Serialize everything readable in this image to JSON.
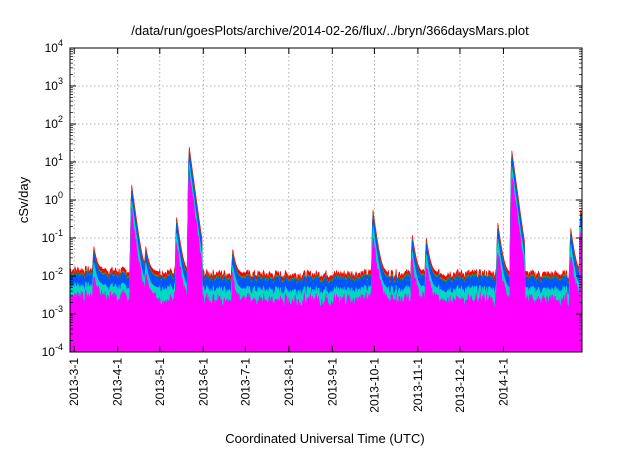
{
  "chart_data": {
    "type": "area",
    "title": "/data/run/goesPlots/archive/2014-02-26/flux/../bryn/366daysMars.plot",
    "xlabel": "Coordinated Universal Time (UTC)",
    "ylabel": "cSv/day",
    "yscale": "log",
    "grid": true,
    "ylim": [
      0.0001,
      10000
    ],
    "xlim": [
      "2013-02-26",
      "2014-02-26"
    ],
    "y_ticks": [
      {
        "value": 0.0001,
        "base": "10",
        "exp": "-4"
      },
      {
        "value": 0.001,
        "base": "10",
        "exp": "-3"
      },
      {
        "value": 0.01,
        "base": "10",
        "exp": "-2"
      },
      {
        "value": 0.1,
        "base": "10",
        "exp": "-1"
      },
      {
        "value": 1,
        "base": "10",
        "exp": "0"
      },
      {
        "value": 10,
        "base": "10",
        "exp": "1"
      },
      {
        "value": 100,
        "base": "10",
        "exp": "2"
      },
      {
        "value": 1000,
        "base": "10",
        "exp": "3"
      },
      {
        "value": 10000,
        "base": "10",
        "exp": "4"
      }
    ],
    "x_ticks": [
      {
        "date": "2013-03-01",
        "label": "2013-3-1"
      },
      {
        "date": "2013-04-01",
        "label": "2013-4-1"
      },
      {
        "date": "2013-05-01",
        "label": "2013-5-1"
      },
      {
        "date": "2013-06-01",
        "label": "2013-6-1"
      },
      {
        "date": "2013-07-01",
        "label": "2013-7-1"
      },
      {
        "date": "2013-08-01",
        "label": "2013-8-1"
      },
      {
        "date": "2013-09-01",
        "label": "2013-9-1"
      },
      {
        "date": "2013-10-01",
        "label": "2013-10-1"
      },
      {
        "date": "2013-11-01",
        "label": "2013-11-1"
      },
      {
        "date": "2013-12-01",
        "label": "2013-12-1"
      },
      {
        "date": "2014-01-01",
        "label": "2014-1-1"
      }
    ],
    "series_colors": [
      "#ff0000",
      "#00cc00",
      "#0055ff",
      "#00d8c0",
      "#ff00ff"
    ],
    "background_profile": [
      {
        "date": "2013-02-26",
        "value": 0.015
      },
      {
        "date": "2013-04-01",
        "value": 0.014
      },
      {
        "date": "2013-06-01",
        "value": 0.012
      },
      {
        "date": "2013-08-01",
        "value": 0.011
      },
      {
        "date": "2013-10-01",
        "value": 0.012
      },
      {
        "date": "2013-12-01",
        "value": 0.012
      },
      {
        "date": "2014-02-26",
        "value": 0.011
      }
    ],
    "events": [
      {
        "date": "2013-03-15",
        "peak": 0.06
      },
      {
        "date": "2013-04-11",
        "peak": 2.5
      },
      {
        "date": "2013-04-21",
        "peak": 0.06
      },
      {
        "date": "2013-05-13",
        "peak": 0.35
      },
      {
        "date": "2013-05-22",
        "peak": 25
      },
      {
        "date": "2013-06-22",
        "peak": 0.05
      },
      {
        "date": "2013-09-30",
        "peak": 0.55
      },
      {
        "date": "2013-10-28",
        "peak": 0.12
      },
      {
        "date": "2013-11-07",
        "peak": 0.1
      },
      {
        "date": "2013-12-28",
        "peak": 0.25
      },
      {
        "date": "2014-01-07",
        "peak": 20
      },
      {
        "date": "2014-02-18",
        "peak": 0.18
      },
      {
        "date": "2014-02-25",
        "peak": 0.55
      }
    ]
  }
}
